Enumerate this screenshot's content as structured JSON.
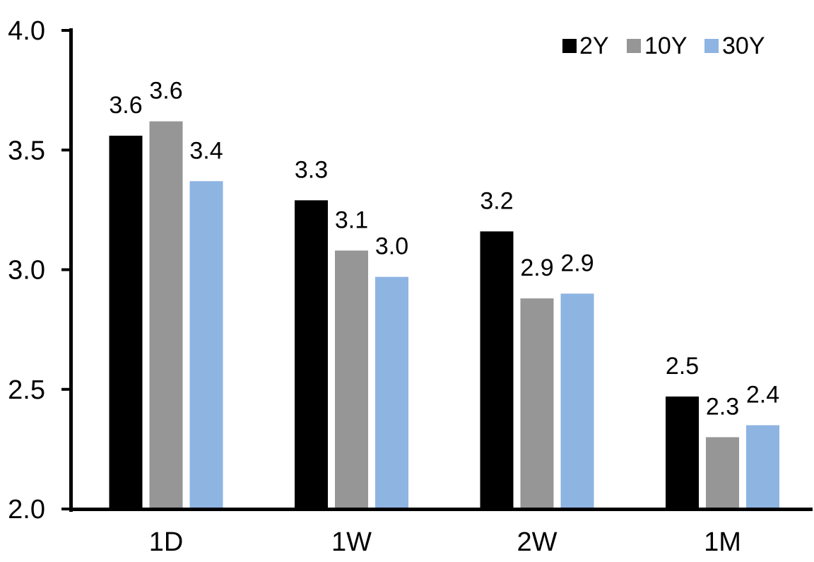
{
  "chart_data": {
    "type": "bar",
    "title": "",
    "categories": [
      "1D",
      "1W",
      "2W",
      "1M"
    ],
    "series": [
      {
        "name": "2Y",
        "color": "#000000",
        "values": [
          3.56,
          3.29,
          3.16,
          2.47
        ],
        "data_labels": [
          "3.6",
          "3.3",
          "3.2",
          "2.5"
        ]
      },
      {
        "name": "10Y",
        "color": "#969696",
        "values": [
          3.62,
          3.08,
          2.88,
          2.3
        ],
        "data_labels": [
          "3.6",
          "3.1",
          "2.9",
          "2.3"
        ]
      },
      {
        "name": "30Y",
        "color": "#8EB4E2",
        "values": [
          3.37,
          2.97,
          2.9,
          2.35
        ],
        "data_labels": [
          "3.4",
          "3.0",
          "2.9",
          "2.4"
        ]
      }
    ],
    "ylim": [
      2.0,
      4.0
    ],
    "ytick_labels": [
      "2.0",
      "2.5",
      "3.0",
      "3.5",
      "4.0"
    ],
    "xlabel": "",
    "ylabel": "",
    "grid": false,
    "legend_position": "top-right",
    "axis_color": "#000000",
    "text_color": "#000000",
    "background": "#FFFFFF"
  }
}
